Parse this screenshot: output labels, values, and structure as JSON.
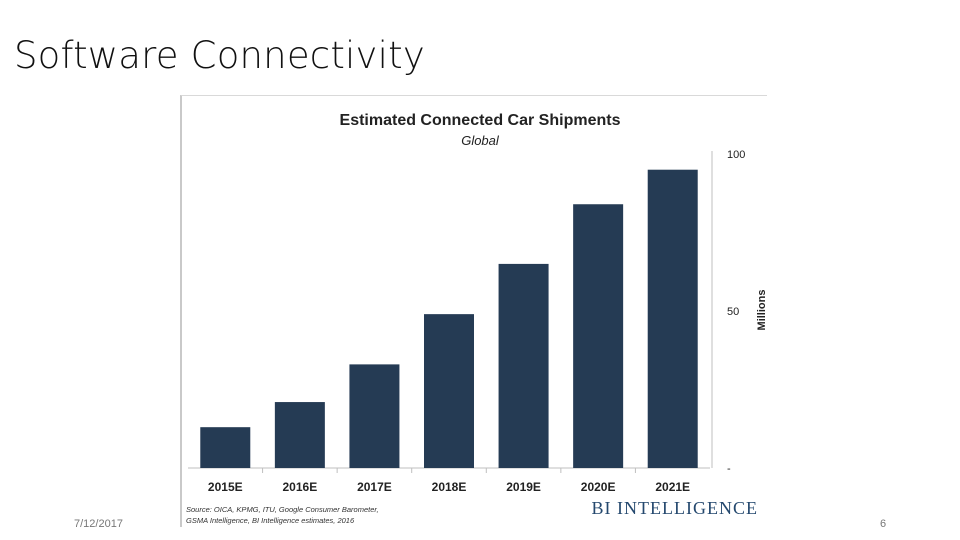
{
  "slide": {
    "title": "Software Connectivity",
    "date": "7/12/2017",
    "page_number": "6"
  },
  "chart_data": {
    "type": "bar",
    "title": "Estimated Connected Car Shipments",
    "subtitle": "Global",
    "categories": [
      "2015E",
      "2016E",
      "2017E",
      "2018E",
      "2019E",
      "2020E",
      "2021E"
    ],
    "values": [
      13,
      21,
      33,
      49,
      65,
      84,
      95
    ],
    "ylabel": "Millions",
    "yticks": [
      "-",
      "50",
      "100"
    ],
    "ylim": [
      0,
      100
    ],
    "axis_side": "right",
    "grid": false,
    "bar_color": "#253b54",
    "source": [
      "Source: OICA, KPMG, ITU, Google Consumer Barometer,",
      "GSMA Intelligence, BI Intelligence estimates, 2016"
    ],
    "brand": "BI INTELLIGENCE",
    "brand_color": "#24486e"
  }
}
